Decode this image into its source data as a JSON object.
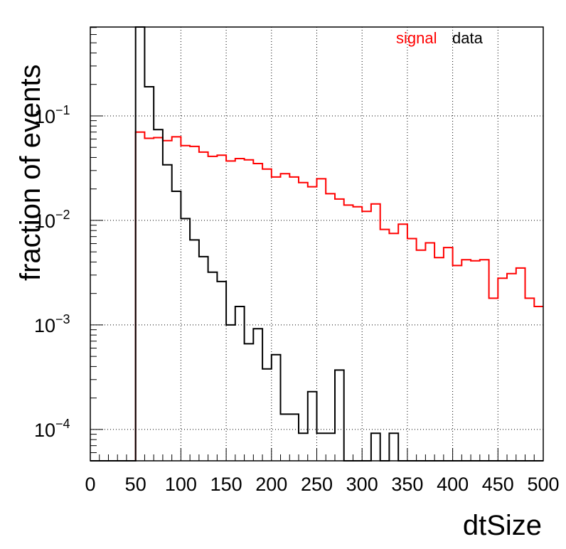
{
  "chart_data": {
    "type": "step",
    "xlabel": "dtSize",
    "ylabel": "fraction of events",
    "xlim": [
      0,
      500
    ],
    "ylim_log10": [
      -4.3,
      -0.15
    ],
    "y_scale": "log",
    "grid": true,
    "legend_placement": "top-right",
    "bin_width": 10,
    "x_ticks": [
      "0",
      "50",
      "100",
      "150",
      "200",
      "250",
      "300",
      "350",
      "400",
      "450",
      "500"
    ],
    "y_ticks": [
      {
        "base": "10",
        "exp": "−1",
        "log10": -1
      },
      {
        "base": "10",
        "exp": "−2",
        "log10": -2
      },
      {
        "base": "10",
        "exp": "−3",
        "log10": -3
      },
      {
        "base": "10",
        "exp": "−4",
        "log10": -4
      }
    ],
    "series": [
      {
        "name": "signal",
        "color": "#ff0000",
        "values": [
          0,
          0,
          0,
          0,
          0,
          0.07,
          0.061,
          0.062,
          0.058,
          0.063,
          0.052,
          0.051,
          0.045,
          0.041,
          0.042,
          0.037,
          0.039,
          0.038,
          0.035,
          0.031,
          0.026,
          0.028,
          0.026,
          0.023,
          0.021,
          0.025,
          0.018,
          0.016,
          0.014,
          0.0135,
          0.0122,
          0.0144,
          0.0082,
          0.0075,
          0.0092,
          0.0067,
          0.0052,
          0.0061,
          0.0044,
          0.0055,
          0.0037,
          0.0042,
          0.0041,
          0.0042,
          0.0018,
          0.0028,
          0.0031,
          0.0035,
          0.0018,
          0.0015
        ]
      },
      {
        "name": "data",
        "color": "#000000",
        "values": [
          0,
          0,
          0,
          0,
          0,
          1.0,
          0.19,
          0.074,
          0.034,
          0.019,
          0.0104,
          0.0065,
          0.0045,
          0.0032,
          0.0026,
          0.001,
          0.0015,
          0.00066,
          0.00092,
          0.00038,
          0.00052,
          0.00014,
          0.00014,
          9.2e-05,
          0.00023,
          9.2e-05,
          9.2e-05,
          0.00037,
          0,
          0,
          0,
          9.2e-05,
          0,
          9.2e-05,
          0,
          0,
          0,
          0,
          0,
          0,
          0,
          0,
          0,
          0,
          0,
          0,
          0,
          0,
          0,
          0
        ]
      }
    ]
  }
}
